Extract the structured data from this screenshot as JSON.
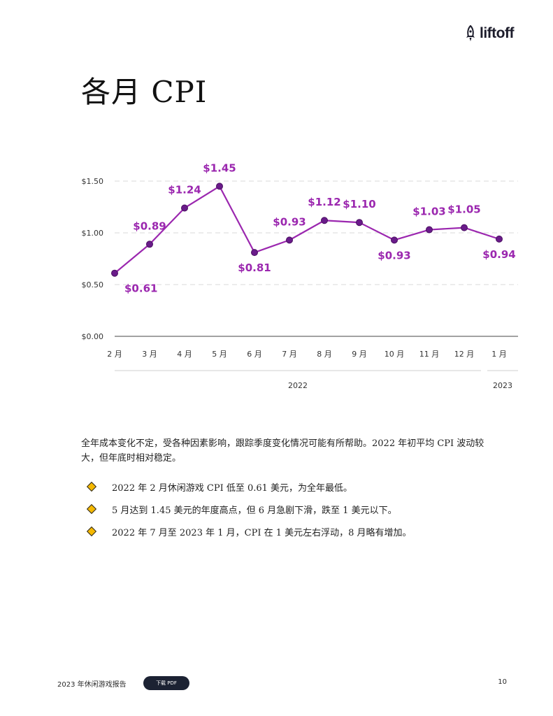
{
  "logo": {
    "text": "liftoff",
    "icon": "rocket-icon"
  },
  "page_title": "各月 CPI",
  "chart_data": {
    "type": "line",
    "categories": [
      "2 月",
      "3 月",
      "4 月",
      "5 月",
      "6 月",
      "7 月",
      "8 月",
      "9 月",
      "10 月",
      "11 月",
      "12 月",
      "1 月"
    ],
    "values": [
      0.61,
      0.89,
      1.24,
      1.45,
      0.81,
      0.93,
      1.12,
      1.1,
      0.93,
      1.03,
      1.05,
      0.94
    ],
    "data_labels": [
      "$0.61",
      "$0.89",
      "$1.24",
      "$1.45",
      "$0.81",
      "$0.93",
      "$1.12",
      "$1.10",
      "$0.93",
      "$1.03",
      "$1.05",
      "$0.94"
    ],
    "y_ticks": [
      0,
      0.5,
      1,
      1.5
    ],
    "y_tick_labels": [
      "$0.00",
      "$0.50",
      "$1.00",
      "$1.50"
    ],
    "ylim": [
      0,
      1.5
    ],
    "year_groups": [
      {
        "label": "2022",
        "start": 0,
        "end": 10
      },
      {
        "label": "2023",
        "start": 11,
        "end": 11
      }
    ],
    "title": "",
    "xlabel": "",
    "ylabel": "",
    "grid": "horizontal dashed",
    "legend": "none",
    "line_color": "#9b27af",
    "marker_color": "#6a1b8a",
    "label_color": "#9b27af"
  },
  "body_text": "全年成本变化不定，受各种因素影响，跟踪季度变化情况可能有所帮助。2022 年初平均 CPI 波动较大，但年底时相对稳定。",
  "bullets": [
    "2022 年 2 月休闲游戏 CPI 低至 0.61 美元，为全年最低。",
    "5 月达到 1.45 美元的年度高点，但 6 月急剧下滑，跌至 1 美元以下。",
    "2022 年 7 月至 2023 年 1 月，CPI 在 1 美元左右浮动，8 月略有增加。"
  ],
  "footer": {
    "report_title": "2023 年休闲游戏报告",
    "pdf_button": "下载 PDF",
    "page_number": "10"
  },
  "colors": {
    "bullet_diamond": "#f5b800",
    "button_bg": "#1c2233"
  }
}
